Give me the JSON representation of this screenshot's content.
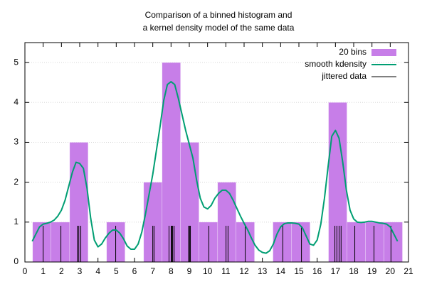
{
  "chart_data": {
    "type": "histogram",
    "title": [
      "Comparison of a binned histogram and",
      "a kernel density model of the same data"
    ],
    "xlim": [
      0,
      21
    ],
    "ylim": [
      0,
      5.5
    ],
    "xticks": [
      0,
      1,
      2,
      3,
      4,
      5,
      6,
      7,
      8,
      9,
      10,
      11,
      12,
      13,
      14,
      15,
      16,
      17,
      18,
      19,
      20,
      21
    ],
    "yticks": [
      0,
      1,
      2,
      3,
      4,
      5
    ],
    "grid": true,
    "legend": "top right",
    "histogram": {
      "name": "20 bins",
      "color": "#c77ee8",
      "bins": [
        0.42,
        1.43,
        2.45,
        3.46,
        4.47,
        5.48,
        6.5,
        7.51,
        8.52,
        9.53,
        10.55,
        11.56,
        12.57,
        13.58,
        14.6,
        15.61,
        16.62,
        17.63,
        18.65,
        19.66,
        20.67
      ],
      "values": [
        1,
        1,
        3,
        0,
        1,
        0,
        2,
        5,
        3,
        1,
        2,
        1,
        0,
        1,
        1,
        0,
        4,
        1,
        1,
        1
      ]
    },
    "density": {
      "name": "smooth kdensity",
      "color": "#009e73",
      "x": [
        0.4,
        0.6,
        0.8,
        1.0,
        1.2,
        1.4,
        1.6,
        1.8,
        2.0,
        2.2,
        2.4,
        2.6,
        2.8,
        3.0,
        3.2,
        3.4,
        3.6,
        3.8,
        4.0,
        4.2,
        4.4,
        4.6,
        4.8,
        5.0,
        5.2,
        5.4,
        5.6,
        5.8,
        6.0,
        6.2,
        6.4,
        6.6,
        6.8,
        7.0,
        7.2,
        7.4,
        7.6,
        7.8,
        8.0,
        8.2,
        8.4,
        8.6,
        8.8,
        9.0,
        9.2,
        9.4,
        9.6,
        9.8,
        10.0,
        10.2,
        10.4,
        10.6,
        10.8,
        11.0,
        11.2,
        11.4,
        11.6,
        11.8,
        12.0,
        12.2,
        12.4,
        12.6,
        12.8,
        13.0,
        13.2,
        13.4,
        13.6,
        13.8,
        14.0,
        14.2,
        14.4,
        14.6,
        14.8,
        15.0,
        15.2,
        15.4,
        15.6,
        15.8,
        16.0,
        16.2,
        16.4,
        16.6,
        16.8,
        17.0,
        17.2,
        17.4,
        17.6,
        17.8,
        18.0,
        18.2,
        18.4,
        18.6,
        18.8,
        19.0,
        19.2,
        19.4,
        19.6,
        19.8,
        20.0,
        20.2,
        20.4
      ],
      "values": [
        0.52,
        0.7,
        0.88,
        0.95,
        0.97,
        1.0,
        1.05,
        1.15,
        1.3,
        1.55,
        1.9,
        2.25,
        2.5,
        2.47,
        2.35,
        1.85,
        1.1,
        0.55,
        0.38,
        0.45,
        0.6,
        0.72,
        0.8,
        0.8,
        0.72,
        0.58,
        0.4,
        0.32,
        0.32,
        0.45,
        0.75,
        1.2,
        1.7,
        2.2,
        2.8,
        3.4,
        4.05,
        4.45,
        4.52,
        4.45,
        4.1,
        3.7,
        3.3,
        2.95,
        2.6,
        2.05,
        1.6,
        1.38,
        1.33,
        1.42,
        1.6,
        1.72,
        1.8,
        1.8,
        1.72,
        1.55,
        1.35,
        1.15,
        0.97,
        0.8,
        0.6,
        0.42,
        0.3,
        0.24,
        0.22,
        0.28,
        0.45,
        0.7,
        0.88,
        0.96,
        0.98,
        0.98,
        0.97,
        0.95,
        0.85,
        0.65,
        0.45,
        0.42,
        0.55,
        0.95,
        1.6,
        2.4,
        3.15,
        3.3,
        3.1,
        2.5,
        1.8,
        1.3,
        1.08,
        1.0,
        0.99,
        1.0,
        1.02,
        1.02,
        1.0,
        0.98,
        0.97,
        0.95,
        0.88,
        0.7,
        0.52
      ]
    },
    "rug": {
      "name": "jittered data",
      "color": "#000000",
      "x": [
        1.0,
        1.97,
        2.87,
        2.95,
        3.06,
        4.97,
        7.0,
        7.07,
        7.89,
        8.01,
        8.05,
        8.09,
        8.17,
        8.95,
        9.02,
        9.06,
        10.07,
        11.01,
        11.12,
        12.06,
        14.12,
        15.14,
        16.97,
        17.08,
        17.2,
        17.31,
        18.06,
        19.11,
        20.04
      ]
    }
  }
}
